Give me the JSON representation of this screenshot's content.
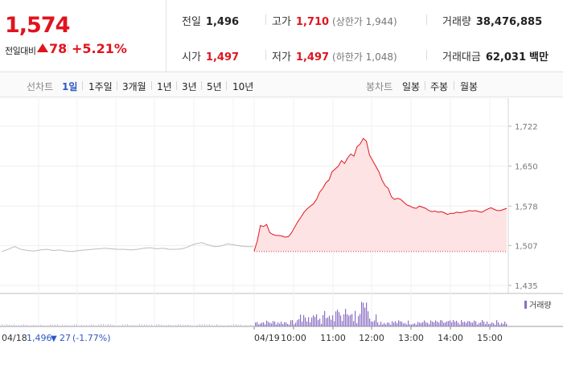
{
  "quote": {
    "price": "1,574",
    "diff_label": "전일대비",
    "diff_value": "78",
    "diff_rate": "+5.21%",
    "fields": {
      "prev_label": "전일",
      "prev_value": "1,496",
      "high_label": "고가",
      "high_value": "1,710",
      "upper_limit": "(상한가 1,944)",
      "volume_label": "거래량",
      "volume_value": "38,476,885",
      "open_label": "시가",
      "open_value": "1,497",
      "low_label": "저가",
      "low_value": "1,497",
      "lower_limit": "(하한가 1,048)",
      "amount_label": "거래대금",
      "amount_value": "62,031",
      "amount_unit": "백만"
    }
  },
  "period_bar": {
    "line_chart_label": "선차트",
    "periods": [
      "1일",
      "1주일",
      "3개월",
      "1년",
      "3년",
      "5년",
      "10년"
    ],
    "active_period": "1일",
    "candle_label": "봉차트",
    "candles": [
      "일봉",
      "주봉",
      "월봉"
    ]
  },
  "chart_data": {
    "type": "line",
    "y_ticks": [
      "1,722",
      "1,650",
      "1,578",
      "1,507",
      "1,435"
    ],
    "ylim": [
      1435,
      1722
    ],
    "prev_close": 1496,
    "x_ticks": [
      "04/19",
      "10:00",
      "11:00",
      "12:00",
      "13:00",
      "14:00",
      "15:00"
    ],
    "volume_legend": "거래량",
    "prev_day": {
      "date": "04/18",
      "close": "1,496",
      "change": "27",
      "change_rate": "(-1.77%)"
    },
    "series": [
      {
        "values": [
          1497,
          1515,
          1543,
          1541,
          1545,
          1530,
          1527,
          1525,
          1525,
          1524,
          1522,
          1523,
          1530,
          1540,
          1550,
          1558,
          1567,
          1573,
          1578,
          1582,
          1590,
          1603,
          1610,
          1620,
          1625,
          1640,
          1645,
          1650,
          1660,
          1655,
          1665,
          1672,
          1668,
          1685,
          1690,
          1700,
          1695,
          1670,
          1660,
          1650,
          1640,
          1625,
          1615,
          1610,
          1595,
          1590,
          1592,
          1590,
          1585,
          1580,
          1578,
          1575,
          1574,
          1578,
          1576,
          1574,
          1570,
          1568,
          1569,
          1567,
          1568,
          1566,
          1563,
          1565,
          1565,
          1567,
          1566,
          1567,
          1568,
          1570,
          1569,
          1570,
          1568,
          1567,
          1570,
          1573,
          1575,
          1572,
          1570,
          1570,
          1572,
          1574
        ]
      },
      {
        "values": [
          1496,
          1500,
          1505,
          1500,
          1498,
          1497,
          1499,
          1500,
          1498,
          1499,
          1497,
          1496,
          1498,
          1499,
          1500,
          1501,
          1502,
          1501,
          1500,
          1500,
          1499,
          1500,
          1502,
          1503,
          1501,
          1502,
          1500,
          1500,
          1501,
          1505,
          1510,
          1512,
          1508,
          1505,
          1506,
          1510,
          1508,
          1506,
          1505,
          1505
        ]
      }
    ]
  },
  "colors": {
    "up": "#e0141e",
    "down": "#2c58c7",
    "volume": "#8b6fc4",
    "prev_line": "#bdbdbd"
  }
}
